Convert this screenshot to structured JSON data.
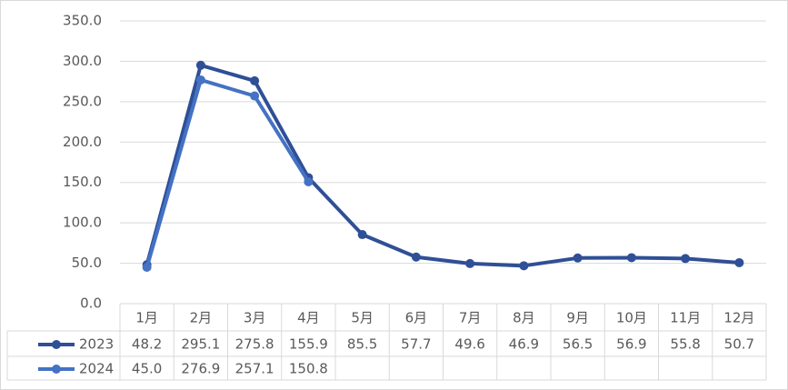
{
  "chart_data": {
    "type": "line",
    "categories": [
      "1月",
      "2月",
      "3月",
      "4月",
      "5月",
      "6月",
      "7月",
      "8月",
      "9月",
      "10月",
      "11月",
      "12月"
    ],
    "series": [
      {
        "name": "2023",
        "color": "#2f4f96",
        "values": [
          48.2,
          295.1,
          275.8,
          155.9,
          85.5,
          57.7,
          49.6,
          46.9,
          56.5,
          56.9,
          55.8,
          50.7
        ]
      },
      {
        "name": "2024",
        "color": "#4472c4",
        "values": [
          45.0,
          276.9,
          257.1,
          150.8,
          null,
          null,
          null,
          null,
          null,
          null,
          null,
          null
        ],
        "value_labels": [
          "45.0",
          "276.9",
          "257.1",
          "150.8",
          null,
          null,
          null,
          null,
          null,
          null,
          null,
          null
        ]
      }
    ],
    "ylim": [
      0,
      350
    ],
    "yticks": [
      {
        "value": 0,
        "label": "0.0"
      },
      {
        "value": 50,
        "label": "50.0"
      },
      {
        "value": 100,
        "label": "100.0"
      },
      {
        "value": 150,
        "label": "150.0"
      },
      {
        "value": 200,
        "label": "200.0"
      },
      {
        "value": 250,
        "label": "250.0"
      },
      {
        "value": 300,
        "label": "300.0"
      },
      {
        "value": 350,
        "label": "350.0"
      }
    ],
    "grid": true
  }
}
